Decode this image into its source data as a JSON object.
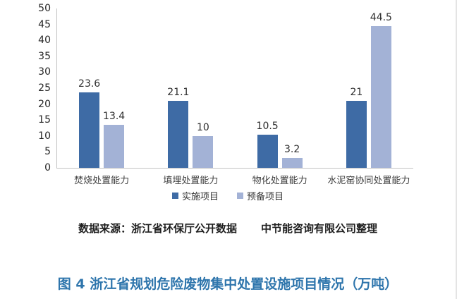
{
  "chart_data": {
    "type": "bar",
    "title": "",
    "xlabel": "",
    "ylabel": "",
    "categories": [
      "焚烧处置能力",
      "填埋处置能力",
      "物化处置能力",
      "水泥窑协同处置能力"
    ],
    "series": [
      {
        "name": "实施项目",
        "color": "#3E6BA5",
        "values": [
          23.6,
          21.1,
          10.5,
          21
        ],
        "labels": [
          "23.6",
          "21.1",
          "10.5",
          "21"
        ]
      },
      {
        "name": "预备项目",
        "color": "#A3B2D6",
        "values": [
          13.4,
          10,
          3.2,
          44.5
        ],
        "labels": [
          "13.4",
          "10",
          "3.2",
          "44.5"
        ]
      }
    ],
    "ylim": [
      0,
      50
    ],
    "ytick_step": 5,
    "grid": false,
    "legend_position": "bottom",
    "axis_color": "#c3c3c3"
  },
  "source_note": {
    "part1": "数据来源：浙江省环保厅公开数据",
    "part2": "中节能咨询有限公司整理"
  },
  "caption": "图 4  浙江省规划危险废物集中处置设施项目情况（万吨）",
  "colors": {
    "caption": "#2E75AC",
    "value_label": "#2e2e2e"
  }
}
